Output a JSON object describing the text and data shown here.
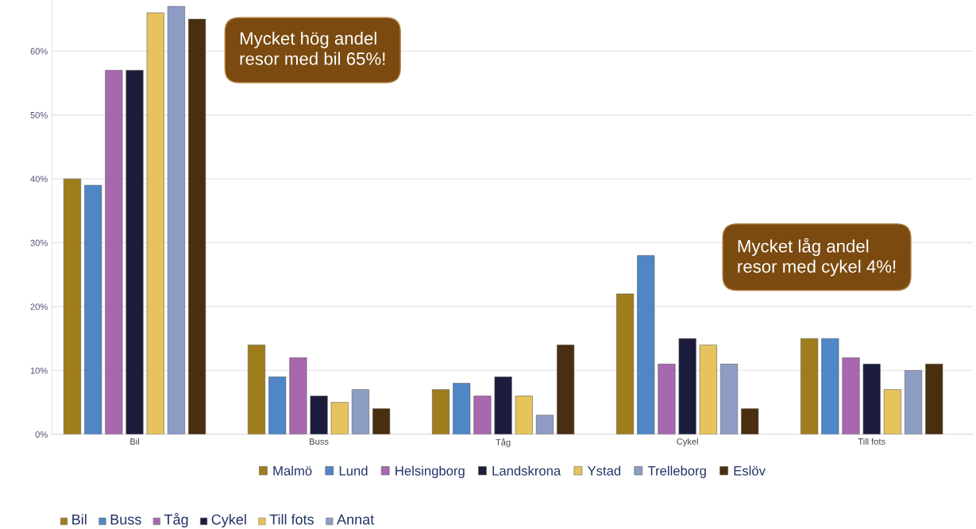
{
  "chart_data": {
    "type": "bar",
    "categories": [
      "Bil",
      "Buss",
      "Tåg",
      "Cykel",
      "Till fots"
    ],
    "series": [
      {
        "name": "Malmö",
        "color": "#a07d1c",
        "values": [
          40,
          14,
          7,
          22,
          15
        ]
      },
      {
        "name": "Lund",
        "color": "#4f86c6",
        "values": [
          39,
          9,
          8,
          28,
          15
        ]
      },
      {
        "name": "Helsingborg",
        "color": "#a868b0",
        "values": [
          57,
          12,
          6,
          11,
          12
        ]
      },
      {
        "name": "Landskrona",
        "color": "#1c1c3c",
        "values": [
          57,
          6,
          9,
          15,
          11
        ]
      },
      {
        "name": "Ystad",
        "color": "#e6c35c",
        "values": [
          66,
          5,
          6,
          14,
          7
        ]
      },
      {
        "name": "Trelleborg",
        "color": "#8d9dc4",
        "values": [
          67,
          7,
          3,
          11,
          10
        ]
      },
      {
        "name": "Eslöv",
        "color": "#4a2e10",
        "values": [
          65,
          4,
          14,
          4,
          11
        ]
      }
    ],
    "ylim": [
      0,
      68
    ],
    "yticks": [
      {
        "value": 0,
        "label": "0%"
      },
      {
        "value": 10,
        "label": "10%"
      },
      {
        "value": 20,
        "label": "20%"
      },
      {
        "value": 30,
        "label": "30%"
      },
      {
        "value": 40,
        "label": "40%"
      },
      {
        "value": 50,
        "label": "50%"
      },
      {
        "value": 60,
        "label": "60%"
      }
    ],
    "grid": "y",
    "legend": "bottom",
    "annotations": [
      "Mycket hög andel\nresor med bil 65%!",
      "Mycket låg andel\nresor med cykel 4%!",
      "Bil",
      "Buss",
      "Tåg",
      "Cykel",
      "Till fots",
      "Annat"
    ]
  }
}
